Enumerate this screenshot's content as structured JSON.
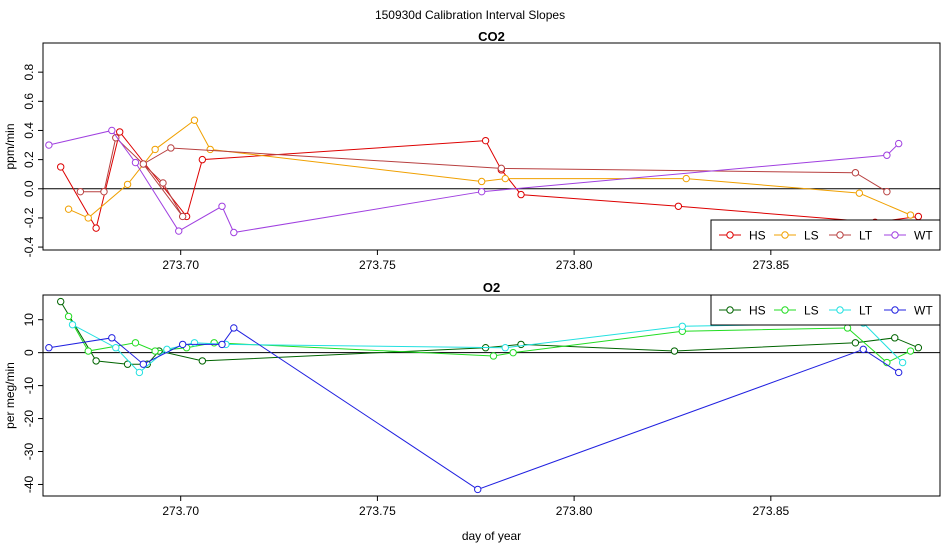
{
  "page": {
    "title": "150930d   Calibration Interval Slopes"
  },
  "chart_data": [
    {
      "type": "line",
      "title": "CO2",
      "ylabel": "ppm/min",
      "xlabel": "",
      "xlim": [
        273.665,
        273.893
      ],
      "ylim": [
        -0.42,
        1.0
      ],
      "xticks": [
        273.7,
        273.75,
        273.8,
        273.85
      ],
      "xtick_labels": [
        "273.70",
        "273.75",
        "273.80",
        "273.85"
      ],
      "yticks": [
        -0.4,
        -0.2,
        0.0,
        0.2,
        0.4,
        0.6,
        0.8
      ],
      "ytick_labels": [
        "-0.4",
        "-0.2",
        "0.0",
        "0.2",
        "0.4",
        "0.6",
        "0.8"
      ],
      "hline": 0,
      "legend_position": "bottom-right",
      "series": [
        {
          "name": "HS",
          "color": "#dd0000",
          "points": [
            [
              273.6695,
              0.15
            ],
            [
              273.6785,
              -0.27
            ],
            [
              273.6845,
              0.39
            ],
            [
              273.7015,
              -0.19
            ],
            [
              273.7055,
              0.2
            ],
            [
              273.7775,
              0.33
            ],
            [
              273.7815,
              0.13
            ],
            [
              273.7865,
              -0.04
            ],
            [
              273.8265,
              -0.12
            ],
            [
              273.8765,
              -0.23
            ],
            [
              273.8875,
              -0.19
            ]
          ]
        },
        {
          "name": "LS",
          "color": "#f0a000",
          "points": [
            [
              273.6715,
              -0.14
            ],
            [
              273.6765,
              -0.2
            ],
            [
              273.6865,
              0.03
            ],
            [
              273.6935,
              0.27
            ],
            [
              273.7035,
              0.47
            ],
            [
              273.7075,
              0.27
            ],
            [
              273.7765,
              0.05
            ],
            [
              273.7825,
              0.07
            ],
            [
              273.8285,
              0.07
            ],
            [
              273.8725,
              -0.03
            ],
            [
              273.8855,
              -0.18
            ]
          ]
        },
        {
          "name": "LT",
          "color": "#b84040",
          "points": [
            [
              273.6745,
              -0.02
            ],
            [
              273.6805,
              -0.02
            ],
            [
              273.6835,
              0.35
            ],
            [
              273.6955,
              0.04
            ],
            [
              273.7005,
              -0.19
            ],
            [
              273.6905,
              0.17
            ],
            [
              273.6975,
              0.28
            ],
            [
              273.7815,
              0.14
            ],
            [
              273.8715,
              0.11
            ],
            [
              273.8795,
              -0.02
            ]
          ]
        },
        {
          "name": "WT",
          "color": "#a040e0",
          "points": [
            [
              273.6665,
              0.3
            ],
            [
              273.6825,
              0.4
            ],
            [
              273.6885,
              0.18
            ],
            [
              273.6995,
              -0.29
            ],
            [
              273.7105,
              -0.12
            ],
            [
              273.7135,
              -0.3
            ],
            [
              273.7765,
              -0.02
            ],
            [
              273.8795,
              0.23
            ],
            [
              273.8825,
              0.31
            ]
          ]
        }
      ]
    },
    {
      "type": "line",
      "title": "O2",
      "ylabel": "per meg/min",
      "xlabel": "day of year",
      "xlim": [
        273.665,
        273.893
      ],
      "ylim": [
        -43.5,
        17.5
      ],
      "xticks": [
        273.7,
        273.75,
        273.8,
        273.85
      ],
      "xtick_labels": [
        "273.70",
        "273.75",
        "273.80",
        "273.85"
      ],
      "yticks": [
        -40,
        -30,
        -20,
        -10,
        0,
        10
      ],
      "ytick_labels": [
        "-40",
        "-30",
        "-20",
        "-10",
        "0",
        "10"
      ],
      "hline": 0,
      "legend_position": "top-right",
      "series": [
        {
          "name": "HS",
          "color": "#006400",
          "points": [
            [
              273.6695,
              15.5
            ],
            [
              273.6785,
              -2.5
            ],
            [
              273.6865,
              -3.5
            ],
            [
              273.6915,
              -3.5
            ],
            [
              273.6945,
              0.5
            ],
            [
              273.7055,
              -2.5
            ],
            [
              273.7775,
              1.5
            ],
            [
              273.7865,
              2.5
            ],
            [
              273.8255,
              0.5
            ],
            [
              273.8715,
              3
            ],
            [
              273.8815,
              4.5
            ],
            [
              273.8875,
              1.5
            ]
          ]
        },
        {
          "name": "LS",
          "color": "#22dd22",
          "points": [
            [
              273.6715,
              11
            ],
            [
              273.6765,
              0.5
            ],
            [
              273.6885,
              3
            ],
            [
              273.6935,
              0.5
            ],
            [
              273.7015,
              1.5
            ],
            [
              273.7085,
              3
            ],
            [
              273.7795,
              -1
            ],
            [
              273.7845,
              0
            ],
            [
              273.8275,
              6.5
            ],
            [
              273.8695,
              7.5
            ],
            [
              273.8795,
              -3
            ],
            [
              273.8855,
              0.5
            ]
          ]
        },
        {
          "name": "LT",
          "color": "#22e0e0",
          "points": [
            [
              273.6725,
              8.5
            ],
            [
              273.6835,
              1.5
            ],
            [
              273.6895,
              -6
            ],
            [
              273.6965,
              1
            ],
            [
              273.7035,
              3
            ],
            [
              273.7115,
              2.5
            ],
            [
              273.7825,
              1.5
            ],
            [
              273.8275,
              8
            ],
            [
              273.8735,
              9
            ],
            [
              273.8835,
              -3
            ]
          ]
        },
        {
          "name": "WT",
          "color": "#2020e0",
          "points": [
            [
              273.6665,
              1.5
            ],
            [
              273.6825,
              4.5
            ],
            [
              273.6905,
              -3.5
            ],
            [
              273.7005,
              2.5
            ],
            [
              273.7105,
              2.5
            ],
            [
              273.7135,
              7.5
            ],
            [
              273.7755,
              -41.5
            ],
            [
              273.8735,
              1
            ],
            [
              273.8825,
              -6
            ]
          ]
        }
      ]
    }
  ]
}
